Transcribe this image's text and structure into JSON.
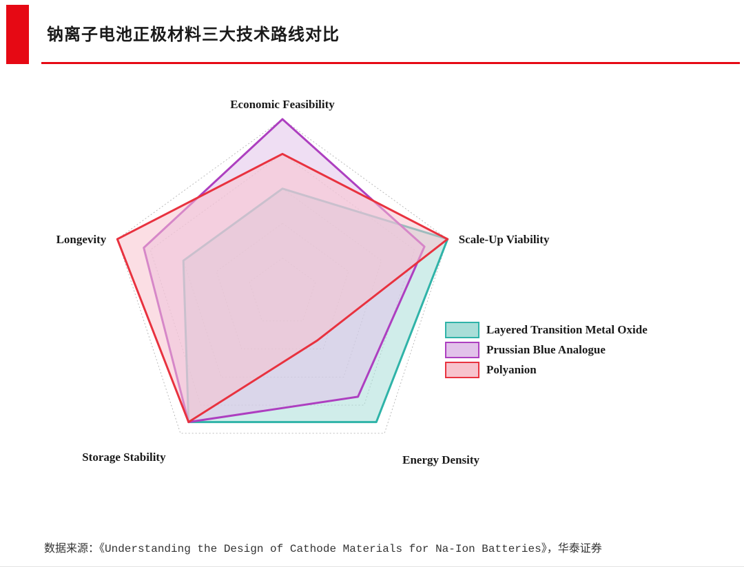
{
  "header": {
    "title": "钠离子电池正极材料三大技术路线对比"
  },
  "footer": {
    "source": "数据来源：《Understanding the Design of Cathode Materials for Na-Ion Batteries》，华泰证券"
  },
  "colors": {
    "accent_red": "#e60914",
    "grid": "#b3b3b3",
    "text": "#1a1a1a"
  },
  "chart_data": {
    "type": "radar",
    "title": "钠离子电池正极材料三大技术路线对比",
    "categories": [
      "Economic Feasibility",
      "Scale-Up Viability",
      "Energy Density",
      "Storage Stability",
      "Longevity"
    ],
    "series": [
      {
        "name": "Layered Transition Metal Oxide",
        "values": [
          3.0,
          5.0,
          4.6,
          4.6,
          3.0
        ],
        "stroke": "#2fb3a8",
        "fill": "#a9ded8"
      },
      {
        "name": "Prussian Blue Analogue",
        "values": [
          5.0,
          4.3,
          3.7,
          4.6,
          4.2
        ],
        "stroke": "#ad3fc0",
        "fill": "#e2c2ea"
      },
      {
        "name": "Polyanion",
        "values": [
          4.0,
          5.0,
          1.7,
          4.6,
          5.0
        ],
        "stroke": "#e8323f",
        "fill": "#f7c3cd"
      }
    ],
    "ylim": [
      0,
      5
    ],
    "grid_levels": 5,
    "grid_style": "dotted-pentagon-rings",
    "legend_position": "right"
  }
}
